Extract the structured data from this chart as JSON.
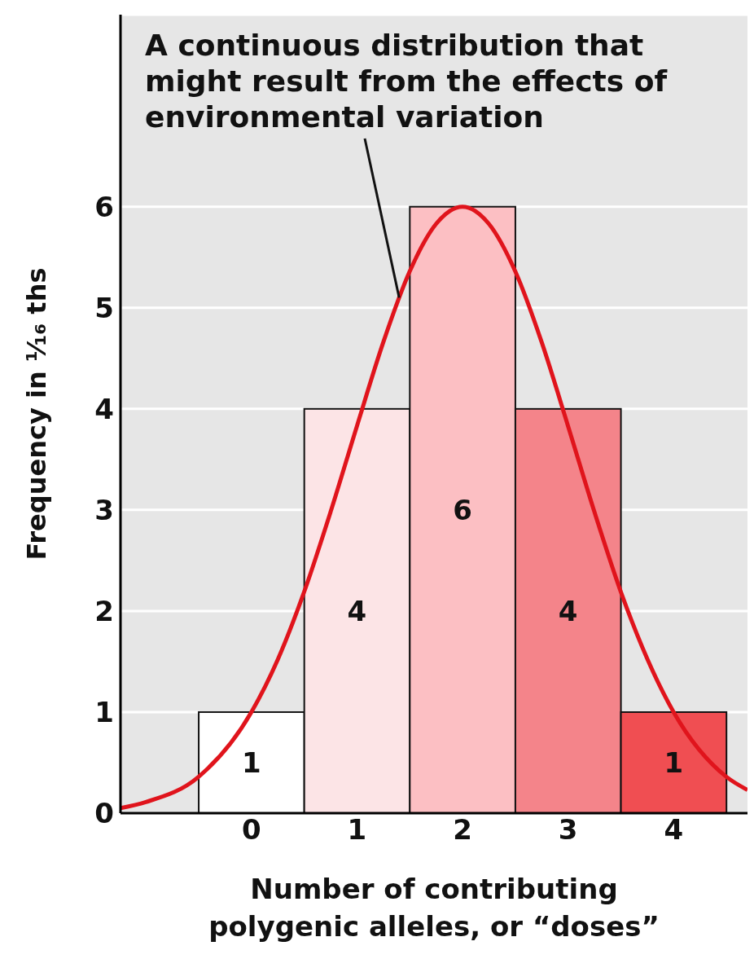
{
  "chart_data": {
    "type": "bar",
    "xlabel": "Number of contributing\npolygenic alleles, or “doses”",
    "ylabel": "Frequency in ¹⁄₁₆ ths",
    "xlim": [
      -1.24,
      4.7
    ],
    "xticks": [
      0,
      1,
      2,
      3,
      4
    ],
    "ylim": [
      0,
      7.9
    ],
    "yticks": [
      0,
      1,
      2,
      3,
      4,
      5,
      6
    ],
    "grid": "y",
    "annotations": [
      {
        "text": "A continuous distribution that\nmight result from the effects of\nenvironmental variation",
        "x": 1.4,
        "y": 5.1
      }
    ],
    "series": [
      {
        "x": [
          0,
          1,
          2,
          3,
          4
        ],
        "values": [
          1,
          4,
          6,
          4,
          1
        ],
        "value_labels": [
          "1",
          "4",
          "6",
          "4",
          "1"
        ],
        "colors": [
          "#ffffff",
          "#fce4e6",
          "#fcbfc3",
          "#f4848a",
          "#f04e52"
        ]
      },
      {
        "type": "line",
        "color": "#e0141c",
        "x": [
          -1.24,
          -1,
          -0.5,
          0,
          0.25,
          0.5,
          0.75,
          1,
          1.25,
          1.5,
          1.75,
          2,
          2.25,
          2.5,
          2.75,
          3,
          3.25,
          3.5,
          4,
          4.5,
          4.7
        ],
        "values": [
          0.05,
          0.11,
          0.36,
          1,
          1.52,
          2.19,
          2.98,
          3.83,
          4.66,
          5.36,
          5.83,
          6,
          5.83,
          5.36,
          4.66,
          3.83,
          2.98,
          2.19,
          1,
          0.36,
          0.23
        ]
      }
    ]
  }
}
